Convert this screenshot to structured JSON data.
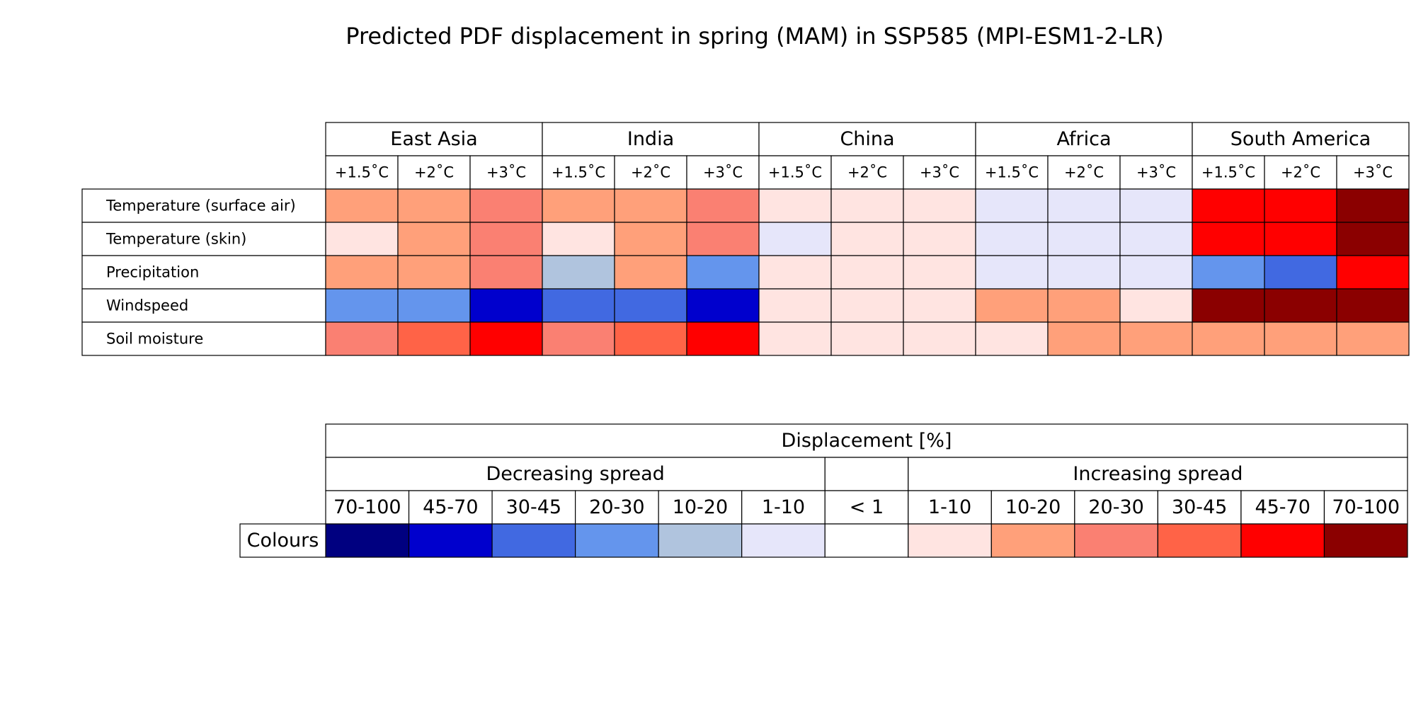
{
  "chart_data": {
    "type": "heatmap",
    "title": "Predicted PDF displacement in spring (MAM) in SSP585 (MPI-ESM1-2-LR)",
    "regions": [
      "East Asia",
      "India",
      "China",
      "Africa",
      "South America"
    ],
    "levels": [
      "+1.5˚C",
      "+2˚C",
      "+3˚C"
    ],
    "variables": [
      "Temperature (surface air)",
      "Temperature (skin)",
      "Precipitation",
      "Windspeed",
      "Soil moisture"
    ],
    "cells": [
      [
        [
          "increase:10-20",
          "increase:10-20",
          "increase:20-30"
        ],
        [
          "increase:1-10",
          "increase:10-20",
          "increase:20-30"
        ],
        [
          "increase:10-20",
          "increase:10-20",
          "increase:20-30"
        ],
        [
          "decrease:20-30",
          "decrease:20-30",
          "decrease:45-70"
        ],
        [
          "increase:20-30",
          "increase:30-45",
          "increase:45-70"
        ]
      ],
      [
        [
          "increase:10-20",
          "increase:10-20",
          "increase:20-30"
        ],
        [
          "increase:1-10",
          "increase:10-20",
          "increase:20-30"
        ],
        [
          "decrease:10-20",
          "increase:10-20",
          "decrease:20-30"
        ],
        [
          "decrease:30-45",
          "decrease:30-45",
          "decrease:45-70"
        ],
        [
          "increase:20-30",
          "increase:30-45",
          "increase:45-70"
        ]
      ],
      [
        [
          "increase:1-10",
          "increase:1-10",
          "increase:1-10"
        ],
        [
          "decrease:1-10",
          "increase:1-10",
          "increase:1-10"
        ],
        [
          "increase:1-10",
          "increase:1-10",
          "increase:1-10"
        ],
        [
          "increase:1-10",
          "increase:1-10",
          "increase:1-10"
        ],
        [
          "increase:1-10",
          "increase:1-10",
          "increase:1-10"
        ]
      ],
      [
        [
          "decrease:1-10",
          "decrease:1-10",
          "decrease:1-10"
        ],
        [
          "decrease:1-10",
          "decrease:1-10",
          "decrease:1-10"
        ],
        [
          "decrease:1-10",
          "decrease:1-10",
          "decrease:1-10"
        ],
        [
          "increase:10-20",
          "increase:10-20",
          "increase:1-10"
        ],
        [
          "increase:1-10",
          "increase:10-20",
          "increase:10-20"
        ]
      ],
      [
        [
          "increase:45-70",
          "increase:45-70",
          "increase:70-100"
        ],
        [
          "increase:45-70",
          "increase:45-70",
          "increase:70-100"
        ],
        [
          "decrease:20-30",
          "decrease:30-45",
          "increase:45-70"
        ],
        [
          "increase:70-100",
          "increase:70-100",
          "increase:70-100"
        ],
        [
          "increase:10-20",
          "increase:10-20",
          "increase:10-20"
        ]
      ]
    ],
    "legend": {
      "title": "Displacement [%]",
      "decreasing_label": "Decreasing spread",
      "increasing_label": "Increasing spread",
      "row_label": "Colours",
      "bins": [
        {
          "id": "decrease:70-100",
          "label": "70-100",
          "color": "#000080"
        },
        {
          "id": "decrease:45-70",
          "label": "45-70",
          "color": "#0000CD"
        },
        {
          "id": "decrease:30-45",
          "label": "30-45",
          "color": "#4169E1"
        },
        {
          "id": "decrease:20-30",
          "label": "20-30",
          "color": "#6495ED"
        },
        {
          "id": "decrease:10-20",
          "label": "10-20",
          "color": "#B0C4DE"
        },
        {
          "id": "decrease:1-10",
          "label": "1-10",
          "color": "#E6E6FA"
        },
        {
          "id": "none",
          "label": "< 1",
          "color": "#FFFFFF"
        },
        {
          "id": "increase:1-10",
          "label": "1-10",
          "color": "#FFE4E1"
        },
        {
          "id": "increase:10-20",
          "label": "10-20",
          "color": "#FFA07A"
        },
        {
          "id": "increase:20-30",
          "label": "20-30",
          "color": "#FA8072"
        },
        {
          "id": "increase:30-45",
          "label": "30-45",
          "color": "#FF6347"
        },
        {
          "id": "increase:45-70",
          "label": "45-70",
          "color": "#FF0000"
        },
        {
          "id": "increase:70-100",
          "label": "70-100",
          "color": "#8B0000"
        }
      ]
    }
  }
}
